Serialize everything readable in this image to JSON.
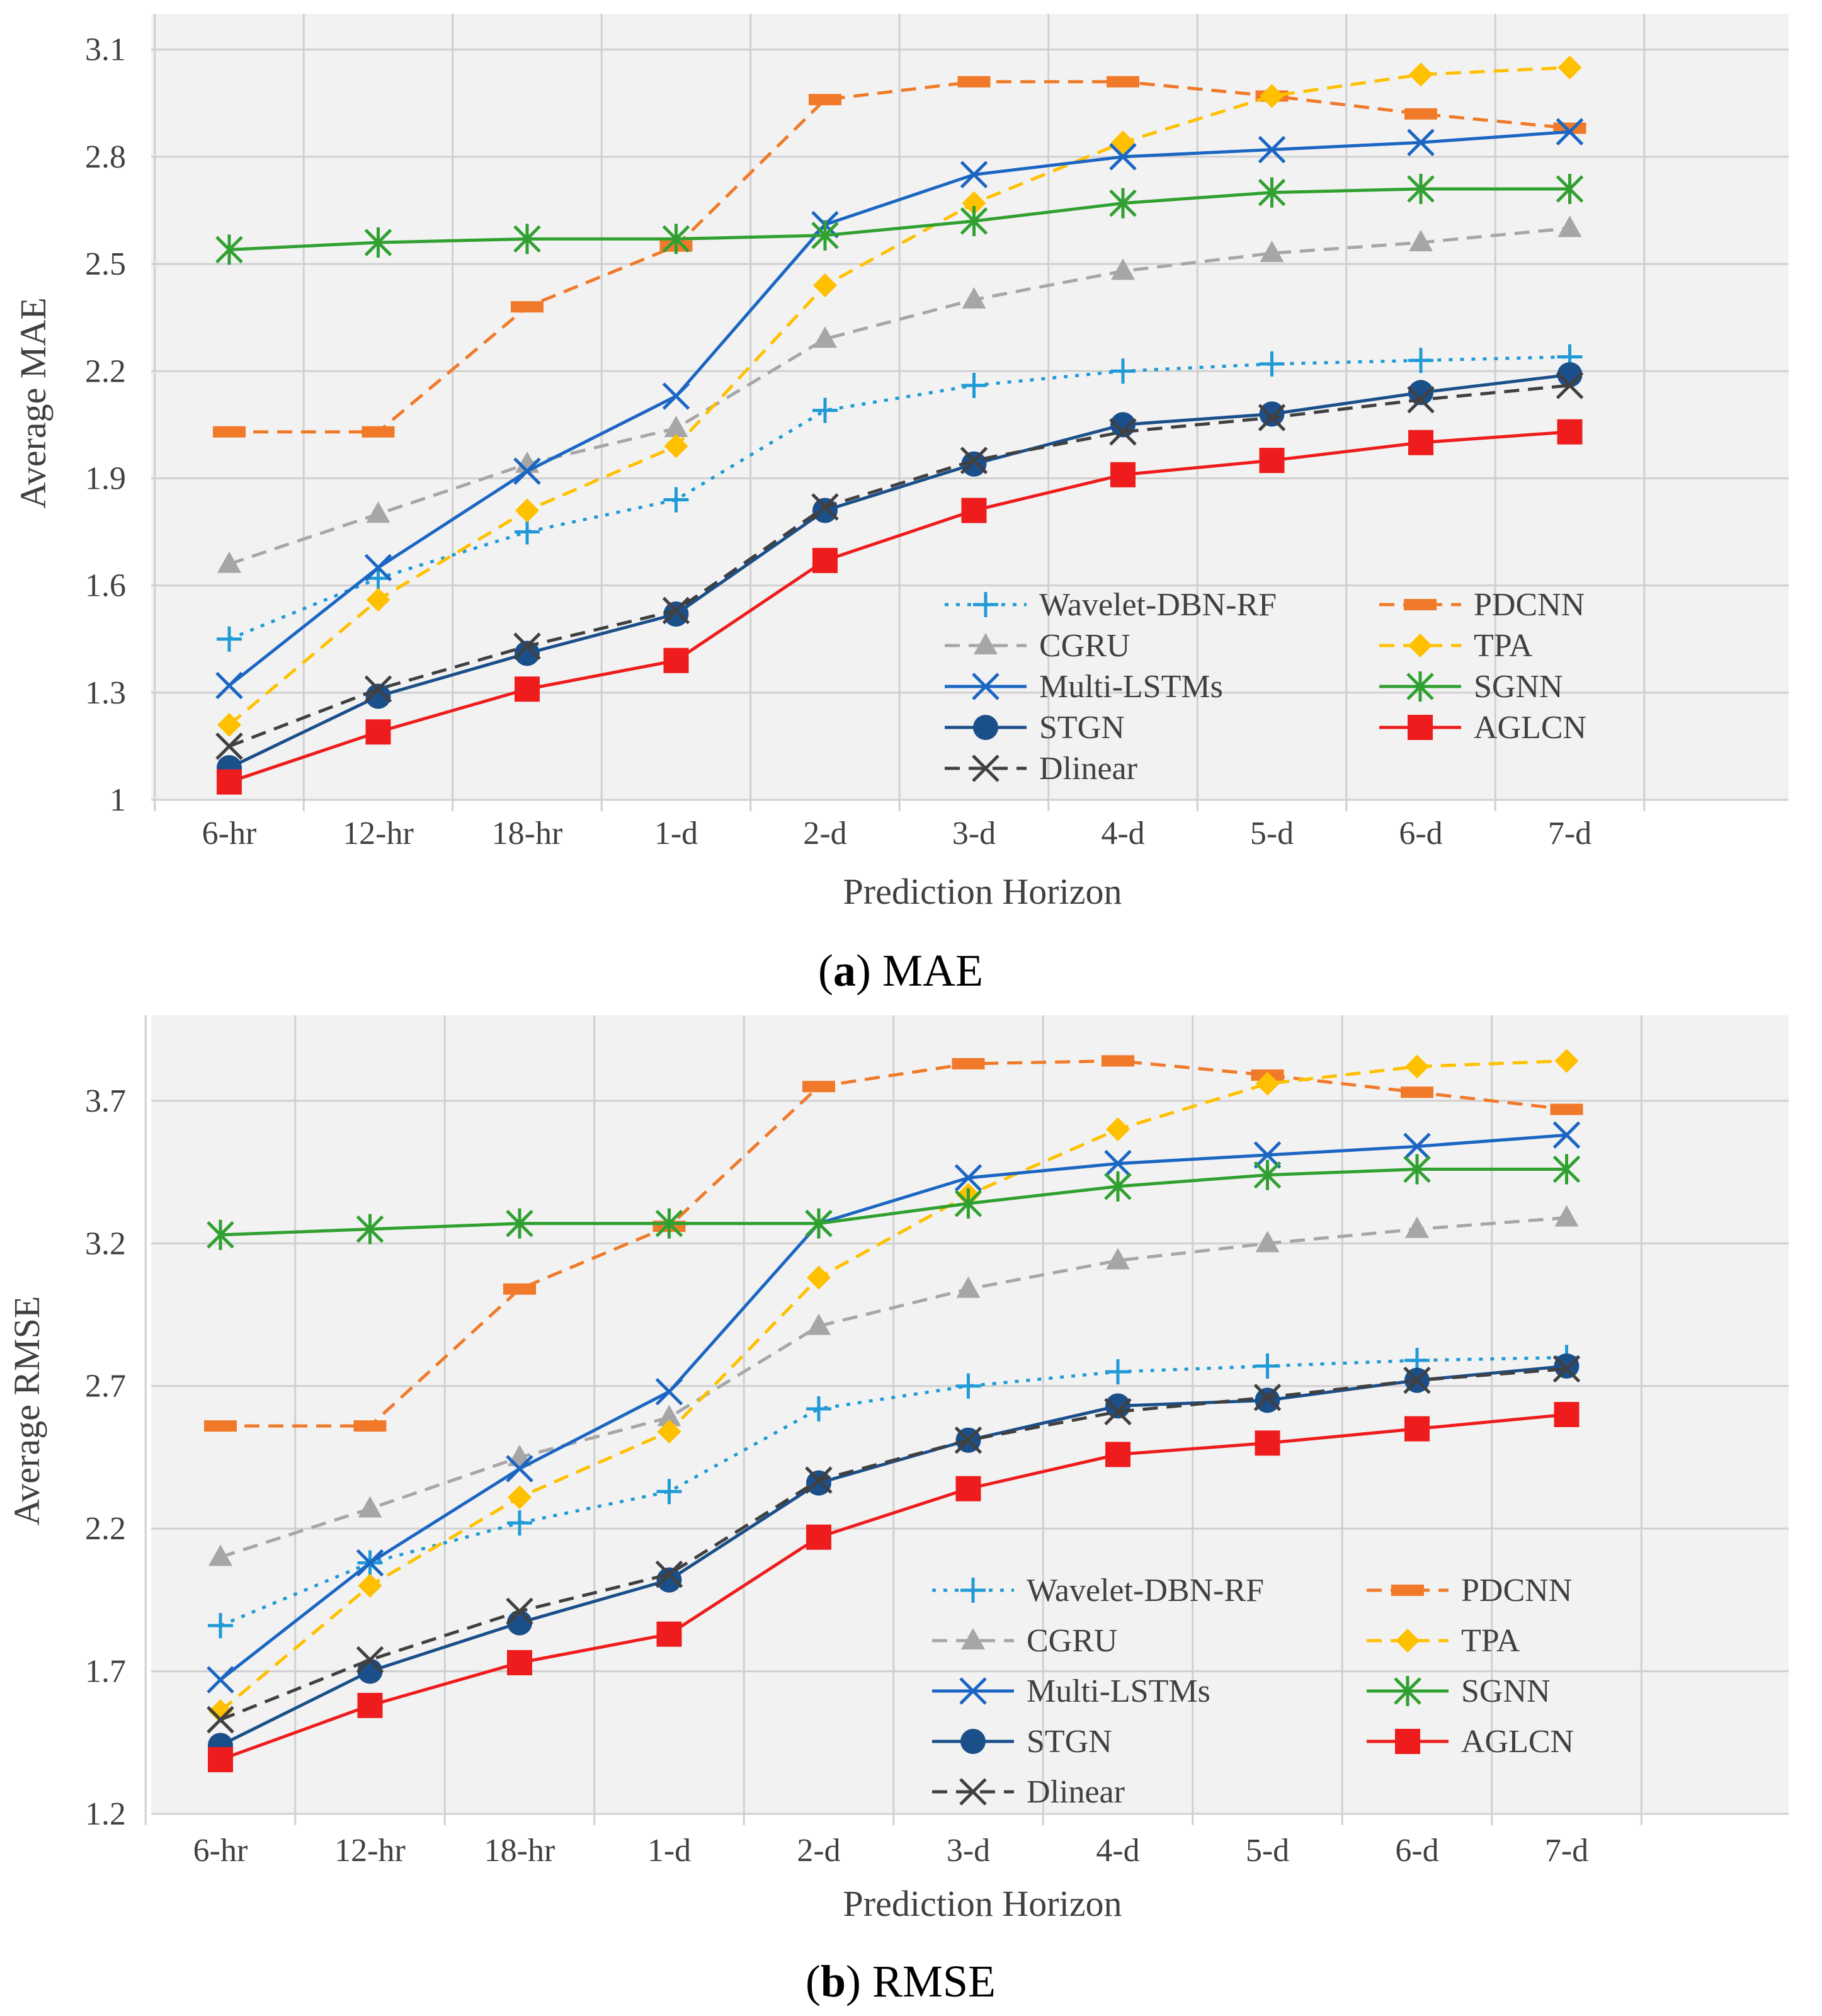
{
  "colors": {
    "plot_bg": "#f2f2f2",
    "grid": "#d0d0d0",
    "axis_text": "#404040"
  },
  "styles": {
    "Wavelet-DBN-RF": {
      "color": "#1f9ad6",
      "dash": "dot",
      "marker": "plus"
    },
    "PDCNN": {
      "color": "#f07a2a",
      "dash": "dash",
      "marker": "bar"
    },
    "CGRU": {
      "color": "#a6a6a6",
      "dash": "dash",
      "marker": "triangle"
    },
    "TPA": {
      "color": "#ffc000",
      "dash": "dash",
      "marker": "diamond"
    },
    "Multi-LSTMs": {
      "color": "#1b66c2",
      "dash": "solid",
      "marker": "x"
    },
    "SGNN": {
      "color": "#30a030",
      "dash": "solid",
      "marker": "asterisk"
    },
    "STGN": {
      "color": "#1b4f8a",
      "dash": "solid",
      "marker": "circle"
    },
    "AGLCN": {
      "color": "#ee1c1c",
      "dash": "solid",
      "marker": "square"
    },
    "Dlinear": {
      "color": "#404040",
      "dash": "dash",
      "marker": "x"
    }
  },
  "chart_data": [
    {
      "type": "line",
      "caption_letter": "a",
      "caption_text": " MAE",
      "xlabel": "Prediction Horizon",
      "ylabel": "Average MAE",
      "ylim": [
        1.0,
        3.2
      ],
      "yticks": [
        1,
        1.3,
        1.6,
        1.9,
        2.2,
        2.5,
        2.8,
        3.1
      ],
      "ytick_labels": [
        "1",
        "1.3",
        "1.6",
        "1.9",
        "2.2",
        "2.5",
        "2.8",
        "3.1"
      ],
      "grid": true,
      "legend_position": "bottom-right",
      "categories": [
        "6-hr",
        "12-hr",
        "18-hr",
        "1-d",
        "2-d",
        "3-d",
        "4-d",
        "5-d",
        "6-d",
        "7-d"
      ],
      "series": [
        {
          "name": "Wavelet-DBN-RF",
          "values": [
            1.45,
            1.62,
            1.75,
            1.84,
            2.09,
            2.16,
            2.2,
            2.22,
            2.23,
            2.24
          ]
        },
        {
          "name": "PDCNN",
          "values": [
            2.03,
            2.03,
            2.38,
            2.55,
            2.96,
            3.01,
            3.01,
            2.97,
            2.92,
            2.88
          ]
        },
        {
          "name": "CGRU",
          "values": [
            1.66,
            1.8,
            1.94,
            2.04,
            2.29,
            2.4,
            2.48,
            2.53,
            2.56,
            2.6
          ]
        },
        {
          "name": "TPA",
          "values": [
            1.21,
            1.56,
            1.81,
            1.99,
            2.44,
            2.67,
            2.84,
            2.97,
            3.03,
            3.05
          ]
        },
        {
          "name": "Multi-LSTMs",
          "values": [
            1.32,
            1.65,
            1.92,
            2.13,
            2.61,
            2.75,
            2.8,
            2.82,
            2.84,
            2.87
          ]
        },
        {
          "name": "SGNN",
          "values": [
            2.54,
            2.56,
            2.57,
            2.57,
            2.58,
            2.62,
            2.67,
            2.7,
            2.71,
            2.71
          ]
        },
        {
          "name": "STGN",
          "values": [
            1.09,
            1.29,
            1.41,
            1.52,
            1.81,
            1.94,
            2.05,
            2.08,
            2.14,
            2.19
          ]
        },
        {
          "name": "AGLCN",
          "values": [
            1.05,
            1.19,
            1.31,
            1.39,
            1.67,
            1.81,
            1.91,
            1.95,
            2.0,
            2.03
          ]
        },
        {
          "name": "Dlinear",
          "values": [
            1.15,
            1.31,
            1.43,
            1.53,
            1.82,
            1.95,
            2.03,
            2.07,
            2.12,
            2.16
          ]
        }
      ]
    },
    {
      "type": "line",
      "caption_letter": "b",
      "caption_text": " RMSE",
      "xlabel": "Prediction Horizon",
      "ylabel": "Average RMSE",
      "ylim": [
        1.2,
        4.0
      ],
      "yticks": [
        1.2,
        1.7,
        2.2,
        2.7,
        3.2,
        3.7
      ],
      "ytick_labels": [
        "1.2",
        "1.7",
        "2.2",
        "2.7",
        "3.2",
        "3.7"
      ],
      "grid": true,
      "legend_position": "bottom-right",
      "categories": [
        "6-hr",
        "12-hr",
        "18-hr",
        "1-d",
        "2-d",
        "3-d",
        "4-d",
        "5-d",
        "6-d",
        "7-d"
      ],
      "series": [
        {
          "name": "Wavelet-DBN-RF",
          "values": [
            1.86,
            2.08,
            2.22,
            2.33,
            2.62,
            2.7,
            2.75,
            2.77,
            2.79,
            2.8
          ]
        },
        {
          "name": "PDCNN",
          "values": [
            2.56,
            2.56,
            3.04,
            3.26,
            3.75,
            3.83,
            3.84,
            3.79,
            3.73,
            3.67
          ]
        },
        {
          "name": "CGRU",
          "values": [
            2.1,
            2.27,
            2.45,
            2.59,
            2.91,
            3.04,
            3.14,
            3.2,
            3.25,
            3.29
          ]
        },
        {
          "name": "TPA",
          "values": [
            1.56,
            2.0,
            2.31,
            2.54,
            3.08,
            3.37,
            3.6,
            3.76,
            3.82,
            3.84
          ]
        },
        {
          "name": "Multi-LSTMs",
          "values": [
            1.67,
            2.08,
            2.41,
            2.68,
            3.27,
            3.43,
            3.48,
            3.51,
            3.54,
            3.58
          ]
        },
        {
          "name": "SGNN",
          "values": [
            3.23,
            3.25,
            3.27,
            3.27,
            3.27,
            3.34,
            3.4,
            3.44,
            3.46,
            3.46
          ]
        },
        {
          "name": "STGN",
          "values": [
            1.44,
            1.7,
            1.87,
            2.02,
            2.36,
            2.51,
            2.63,
            2.65,
            2.72,
            2.77
          ]
        },
        {
          "name": "AGLCN",
          "values": [
            1.39,
            1.58,
            1.73,
            1.83,
            2.17,
            2.34,
            2.46,
            2.5,
            2.55,
            2.6
          ]
        },
        {
          "name": "Dlinear",
          "values": [
            1.53,
            1.74,
            1.91,
            2.04,
            2.37,
            2.51,
            2.61,
            2.66,
            2.72,
            2.76
          ]
        }
      ]
    }
  ]
}
